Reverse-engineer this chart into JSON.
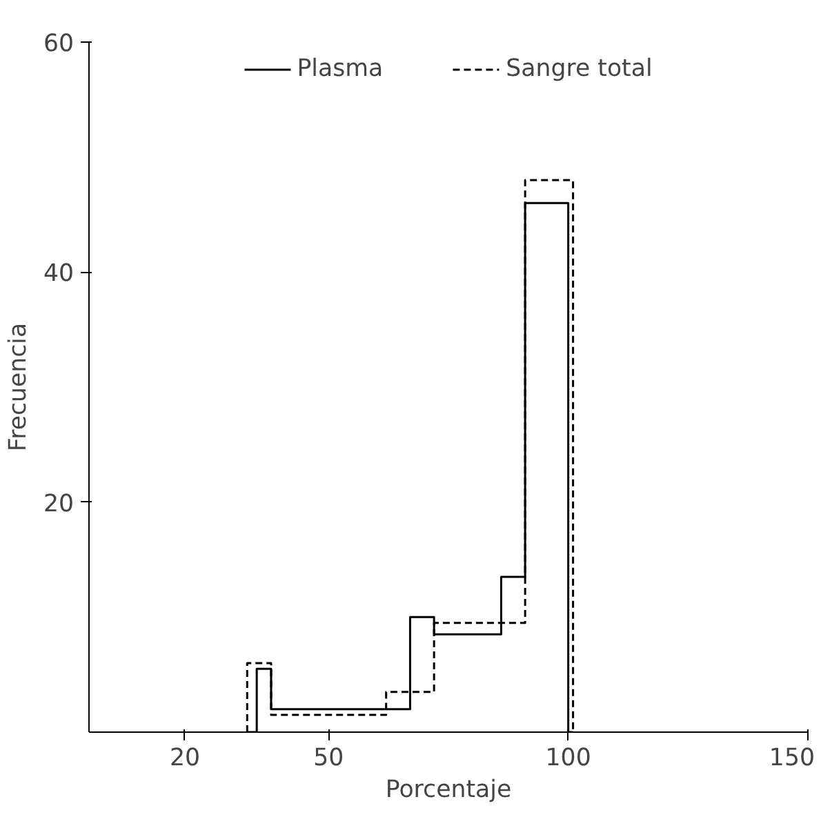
{
  "chart_data": {
    "type": "histogram",
    "xlabel": "Porcentaje",
    "ylabel": "Frecuencia",
    "xlim": [
      0,
      150
    ],
    "xticks": [
      20,
      50,
      100,
      150
    ],
    "ylim": [
      0,
      60
    ],
    "yticks": [
      20,
      40,
      60
    ],
    "grid": false,
    "legend": "top",
    "bins": [
      33,
      35,
      38,
      62,
      67,
      72,
      74.5,
      86,
      91,
      100,
      101
    ],
    "series": [
      {
        "name": "Plasma",
        "color": "#000000",
        "line_style": "solid",
        "values": [
          0,
          5.5,
          2,
          2,
          10,
          8.5,
          8.5,
          13.5,
          46,
          0
        ]
      },
      {
        "name": "Sangre total",
        "color": "#000000",
        "line_style": "dashed",
        "values": [
          6,
          6,
          1.5,
          3.5,
          3.5,
          9.5,
          9.5,
          9.5,
          48,
          48
        ]
      }
    ]
  }
}
